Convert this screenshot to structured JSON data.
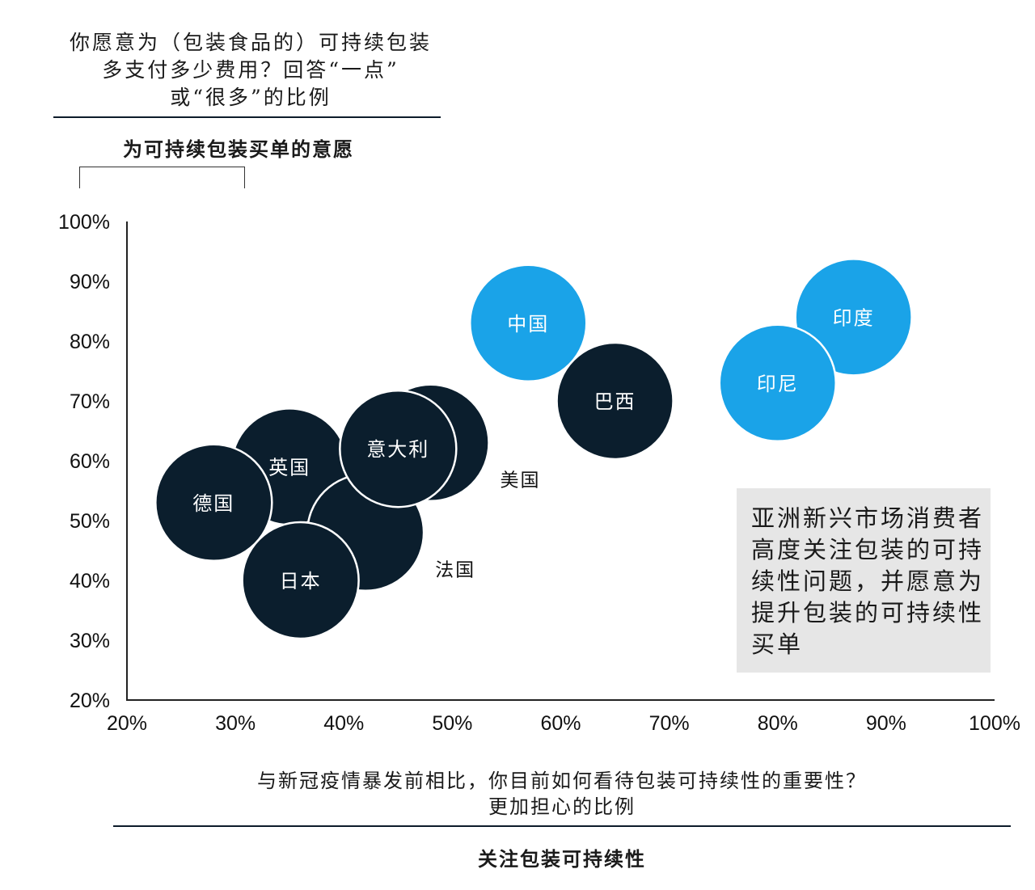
{
  "chart_data": {
    "type": "scatter",
    "ylabel_question": [
      "你愿意为（包装食品的）可持续包装",
      "多支付多少费用？回答“一点”",
      "或“很多”的比例"
    ],
    "ylabel_title": "为可持续包装买单的意愿",
    "xlabel_question": [
      "与新冠疫情暴发前相比，你目前如何看待包装可持续性的重要性？",
      "更加担心的比例"
    ],
    "xlabel_title": "关注包装可持续性",
    "xlim": [
      20,
      100
    ],
    "ylim": [
      20,
      100
    ],
    "x_ticks": [
      "20%",
      "30%",
      "40%",
      "50%",
      "60%",
      "70%",
      "80%",
      "90%",
      "100%"
    ],
    "y_ticks": [
      "100%",
      "90%",
      "80%",
      "70%",
      "60%",
      "50%",
      "40%",
      "30%",
      "20%"
    ],
    "grid": false,
    "colors": {
      "asia_emerging": "#1aa3e8",
      "other": "#0b1e2d"
    },
    "points": [
      {
        "label": "中国",
        "x": 57,
        "y": 83,
        "group": "asia_emerging",
        "label_outside": false
      },
      {
        "label": "印度",
        "x": 87,
        "y": 84,
        "group": "asia_emerging",
        "label_outside": false
      },
      {
        "label": "印尼",
        "x": 80,
        "y": 73,
        "group": "asia_emerging",
        "label_outside": false
      },
      {
        "label": "巴西",
        "x": 65,
        "y": 70,
        "group": "other",
        "label_outside": false
      },
      {
        "label": "美国",
        "x": 48,
        "y": 63,
        "group": "other",
        "label_outside": true
      },
      {
        "label": "英国",
        "x": 35,
        "y": 59,
        "group": "other",
        "label_outside": false
      },
      {
        "label": "法国",
        "x": 42,
        "y": 48,
        "group": "other",
        "label_outside": true
      },
      {
        "label": "意大利",
        "x": 45,
        "y": 62,
        "group": "other",
        "label_outside": false
      },
      {
        "label": "德国",
        "x": 28,
        "y": 53,
        "group": "other",
        "label_outside": false
      },
      {
        "label": "日本",
        "x": 36,
        "y": 40,
        "group": "other",
        "label_outside": false
      }
    ],
    "annotation": "亚洲新兴市场消费者高度关注包装的可持续性问题，并愿意为提升包装的可持续性买单"
  }
}
